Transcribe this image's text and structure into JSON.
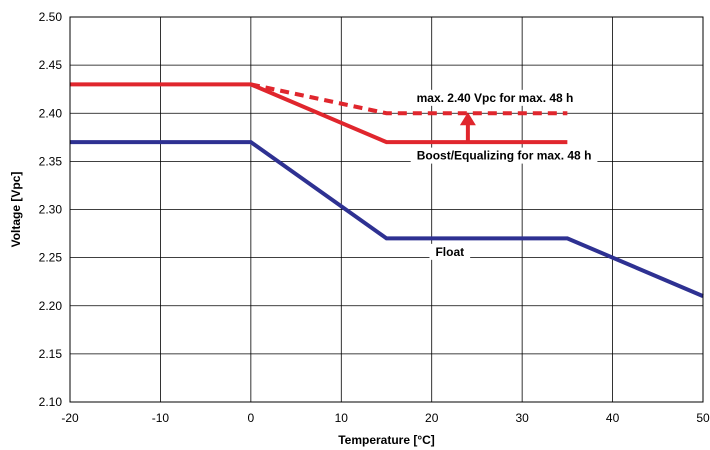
{
  "chart_data": {
    "type": "line",
    "title": "",
    "xlabel": "Temperature [°C]",
    "ylabel": "Voltage [Vpc]",
    "xlim": [
      -20,
      50
    ],
    "ylim": [
      2.1,
      2.5
    ],
    "xticks": [
      -20,
      -10,
      0,
      10,
      20,
      30,
      40,
      50
    ],
    "yticks": [
      2.1,
      2.15,
      2.2,
      2.25,
      2.3,
      2.35,
      2.4,
      2.45,
      2.5
    ],
    "xtick_labels": [
      "-20",
      "-10",
      "0",
      "10",
      "20",
      "30",
      "40",
      "50"
    ],
    "ytick_labels": [
      "2.10",
      "2.15",
      "2.20",
      "2.25",
      "2.30",
      "2.35",
      "2.40",
      "2.45",
      "2.50"
    ],
    "grid": true,
    "legend": "none",
    "series": [
      {
        "key": "boost",
        "color": "#e0262d",
        "style": "solid",
        "x": [
          -20,
          0,
          15,
          35
        ],
        "y": [
          2.43,
          2.43,
          2.37,
          2.37
        ]
      },
      {
        "key": "max240",
        "color": "#e0262d",
        "style": "dashed",
        "x": [
          0,
          15,
          35
        ],
        "y": [
          2.43,
          2.4,
          2.4
        ]
      },
      {
        "key": "float",
        "color": "#2e3192",
        "style": "solid",
        "x": [
          -20,
          0,
          15,
          35,
          50
        ],
        "y": [
          2.37,
          2.37,
          2.27,
          2.27,
          2.21
        ]
      }
    ],
    "annotations": [
      {
        "key": "max240",
        "text": "max. 2.40 Vpc for max. 48 h",
        "x": 27,
        "y": 2.416
      },
      {
        "key": "boost",
        "text": "Boost/Equalizing for max. 48 h",
        "x": 28,
        "y": 2.356
      },
      {
        "key": "float",
        "text": "Float",
        "x": 22,
        "y": 2.256
      }
    ],
    "arrow": {
      "x": 24,
      "y_from": 2.37,
      "y_to": 2.4,
      "color": "#e0262d"
    }
  }
}
